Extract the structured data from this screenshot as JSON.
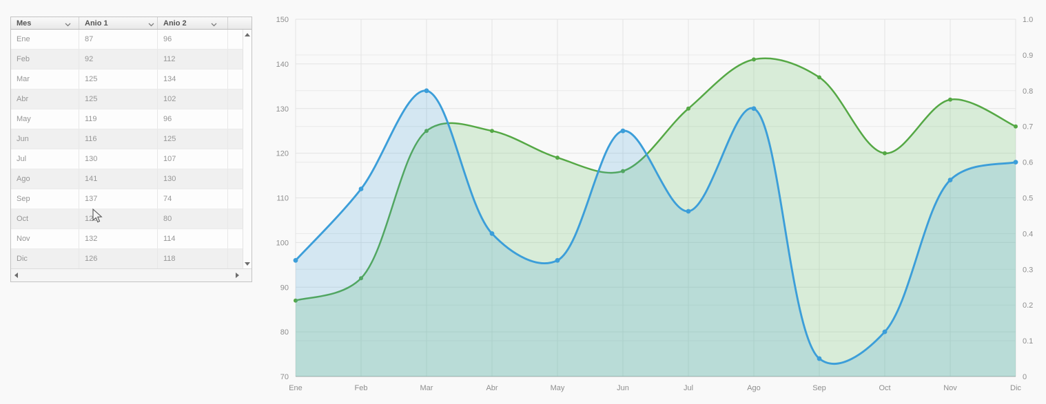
{
  "grid": {
    "columns": [
      {
        "label": "Mes"
      },
      {
        "label": "Anio 1"
      },
      {
        "label": "Anio 2"
      }
    ],
    "rows": [
      [
        "Ene",
        "87",
        "96"
      ],
      [
        "Feb",
        "92",
        "112"
      ],
      [
        "Mar",
        "125",
        "134"
      ],
      [
        "Abr",
        "125",
        "102"
      ],
      [
        "May",
        "119",
        "96"
      ],
      [
        "Jun",
        "116",
        "125"
      ],
      [
        "Jul",
        "130",
        "107"
      ],
      [
        "Ago",
        "141",
        "130"
      ],
      [
        "Sep",
        "137",
        "74"
      ],
      [
        "Oct",
        "120",
        "80"
      ],
      [
        "Nov",
        "132",
        "114"
      ],
      [
        "Dic",
        "126",
        "118"
      ]
    ]
  },
  "chart_data": {
    "type": "area",
    "subtype": "spline-area",
    "categories": [
      "Ene",
      "Feb",
      "Mar",
      "Abr",
      "May",
      "Jun",
      "Jul",
      "Ago",
      "Sep",
      "Oct",
      "Nov",
      "Dic"
    ],
    "series": [
      {
        "name": "Anio 1",
        "color": "#55a845",
        "fill": "rgba(102,189,99,0.22)",
        "values": [
          87,
          92,
          125,
          125,
          119,
          116,
          130,
          141,
          137,
          120,
          132,
          126
        ]
      },
      {
        "name": "Anio 2",
        "color": "#3c9ed9",
        "fill": "rgba(64,158,217,0.20)",
        "values": [
          96,
          112,
          134,
          102,
          96,
          125,
          107,
          130,
          74,
          80,
          114,
          118
        ]
      }
    ],
    "left_axis": {
      "min": 70,
      "max": 150,
      "step": 10,
      "labels": [
        "150",
        "140",
        "130",
        "120",
        "110",
        "100",
        "90",
        "80",
        "70"
      ]
    },
    "right_axis": {
      "min": 0,
      "max": 1,
      "step": 0.1,
      "labels": [
        "1.0",
        "0.9",
        "0.8",
        "0.7",
        "0.6",
        "0.5",
        "0.4",
        "0.3",
        "0.2",
        "0.1",
        "0"
      ]
    },
    "grid": true,
    "legend": "none"
  }
}
